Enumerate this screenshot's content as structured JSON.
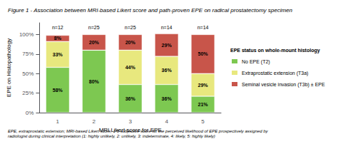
{
  "chart_data": {
    "type": "bar",
    "title": "Figure 1 - Association between MRI-based Likert score and path-proven EPE on radical prostatectomy specimen",
    "footnote": "EPE, extraprostatic extension; MRI-based Likert score, 1-5 subjective score for the perceived likelihood of EPE prospectively assigned by\nradiologist during clinical interpretation (1: highly unlikely, 2: unlikely, 3: indeterminate, 4: likely, 5: highly likely)",
    "xlabel": "MRI Likert score for EPE",
    "ylabel": "EPE on Histopathology",
    "categories": [
      1,
      2,
      3,
      4,
      5
    ],
    "series": [
      {
        "name": "No EPE (T2)",
        "color": "#7dc851",
        "values": [
          58,
          80,
          36,
          36,
          21
        ],
        "value_labels": [
          "58%",
          "80%",
          "36%",
          "36%",
          "21%"
        ]
      },
      {
        "name": "Extraprostatic extension (T3a)",
        "color": "#e8e87e",
        "values": [
          33,
          0,
          44,
          36,
          29
        ],
        "value_labels": [
          "33%",
          null,
          "44%",
          "36%",
          "29%"
        ]
      },
      {
        "name": "Seminal vesicle invasion (T3b) ± EPE",
        "color": "#c8554a",
        "values": [
          8,
          20,
          20,
          29,
          50
        ],
        "value_labels": [
          "8%",
          "20%",
          "20%",
          "29%",
          "50%"
        ]
      }
    ],
    "annotations": [
      {
        "category": 1,
        "text": "n=12"
      },
      {
        "category": 2,
        "text": "n=25"
      },
      {
        "category": 3,
        "text": "n=25"
      },
      {
        "category": 4,
        "text": "n=14"
      },
      {
        "category": 5,
        "text": "n=14"
      }
    ],
    "legend_title": "EPE status on whole-mount histology",
    "legend": "right",
    "stacked": true,
    "data_labels": true,
    "grid": false,
    "ylim": [
      0,
      115
    ],
    "yticks": [
      {
        "value": 0,
        "label": "0%"
      },
      {
        "value": 25,
        "label": "25%"
      },
      {
        "value": 50,
        "label": "50%"
      },
      {
        "value": 75,
        "label": "75%"
      },
      {
        "value": 100,
        "label": "100%"
      }
    ]
  }
}
